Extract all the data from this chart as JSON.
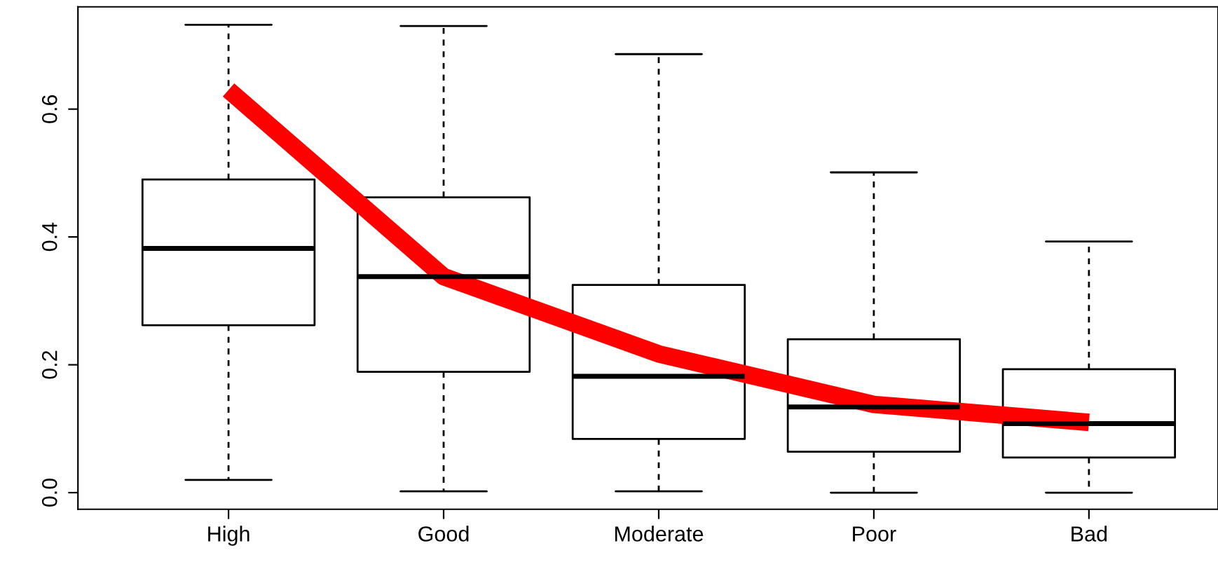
{
  "chart_data": {
    "type": "box",
    "categories": [
      "High",
      "Good",
      "Moderate",
      "Poor",
      "Bad"
    ],
    "boxes": [
      {
        "low": 0.02,
        "q1": 0.262,
        "median": 0.382,
        "q3": 0.49,
        "high": 0.732
      },
      {
        "low": 0.002,
        "q1": 0.189,
        "median": 0.338,
        "q3": 0.462,
        "high": 0.73
      },
      {
        "low": 0.002,
        "q1": 0.084,
        "median": 0.182,
        "q3": 0.325,
        "high": 0.686
      },
      {
        "low": 0.0,
        "q1": 0.064,
        "median": 0.134,
        "q3": 0.24,
        "high": 0.501
      },
      {
        "low": 0.0,
        "q1": 0.055,
        "median": 0.108,
        "q3": 0.193,
        "high": 0.393
      }
    ],
    "series": [
      {
        "type": "line",
        "color": "#ff0000",
        "x": [
          "High",
          "Good",
          "Moderate",
          "Poor",
          "Bad"
        ],
        "values": [
          0.63,
          0.338,
          0.217,
          0.138,
          0.11
        ]
      }
    ],
    "ylim": [
      -0.026,
      0.76
    ],
    "yticks": [
      {
        "value": 0,
        "label": "0.0"
      },
      {
        "value": 0.2,
        "label": "0.2"
      },
      {
        "value": 0.4,
        "label": "0.4"
      },
      {
        "value": 0.6,
        "label": "0.6"
      }
    ],
    "grid": false,
    "legend": false
  }
}
